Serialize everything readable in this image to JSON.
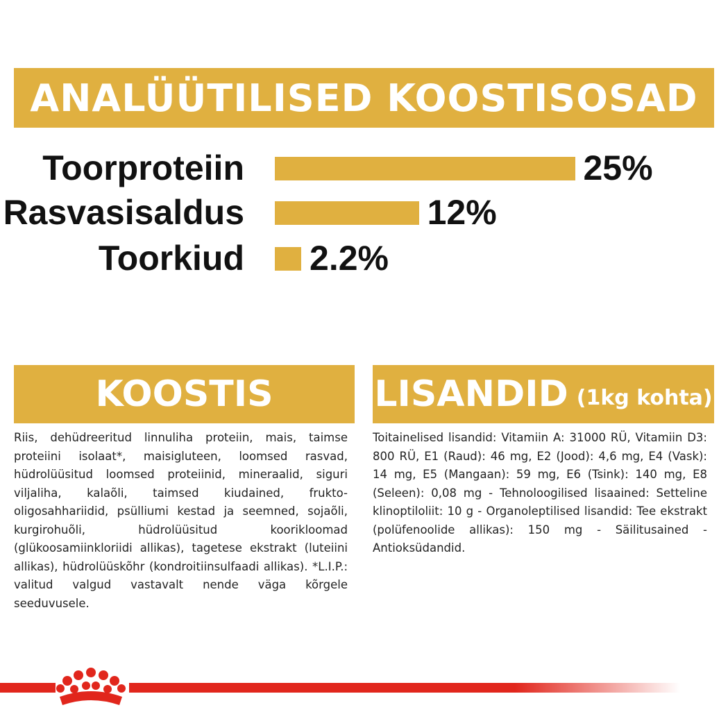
{
  "analysis": {
    "title": "ANALÜÜTILISED KOOSTISOSAD",
    "items": [
      {
        "label": "Toorproteiin",
        "value": "25%",
        "percent": 25
      },
      {
        "label": "Rasvasisaldus",
        "value": "12%",
        "percent": 12
      },
      {
        "label": "Toorkiud",
        "value": "2.2%",
        "percent": 2.2
      }
    ]
  },
  "composition": {
    "title": "KOOSTIS",
    "text": "Riis, dehüdreeritud linnuliha proteiin, mais, taimse proteiini isolaat*, maisigluteen, loomsed rasvad, hüdrolüüsitud loomsed proteiinid, mineraalid, siguri viljaliha, kalaõli, taimsed kiudained, frukto-oligosahhariidid, psülliumi kestad ja seemned, sojaõli, kurgirohuõli, hüdrolüüsitud koorikloomad (glükoosamiinkloriidi allikas), tagetese ekstrakt (luteiini allikas), hüdrolüüskõhr (kondroitiinsulfaadi allikas). *L.I.P.: valitud valgud vastavalt nende väga kõrgele seeduvusele."
  },
  "additives": {
    "title": "LISANDID",
    "subtitle": "(1kg kohta)",
    "text": "Toitainelised lisandid: Vitamiin A: 31000 RÜ, Vitamiin D3: 800 RÜ, E1 (Raud): 46 mg, E2 (Jood): 4,6 mg, E4 (Vask): 14 mg, E5 (Mangaan): 59 mg, E6 (Tsink): 140 mg, E8 (Seleen): 0,08 mg - Tehnoloogilised lisaained: Setteline klinoptiloliit: 10 g - Organoleptilised lisandid: Tee ekstrakt (polüfenoolide allikas): 150 mg - Säilitusained - Antioksüdandid."
  },
  "brand": {
    "logo": "crown-icon",
    "accent_color": "#e0b040",
    "line_color": "#e1261c"
  }
}
